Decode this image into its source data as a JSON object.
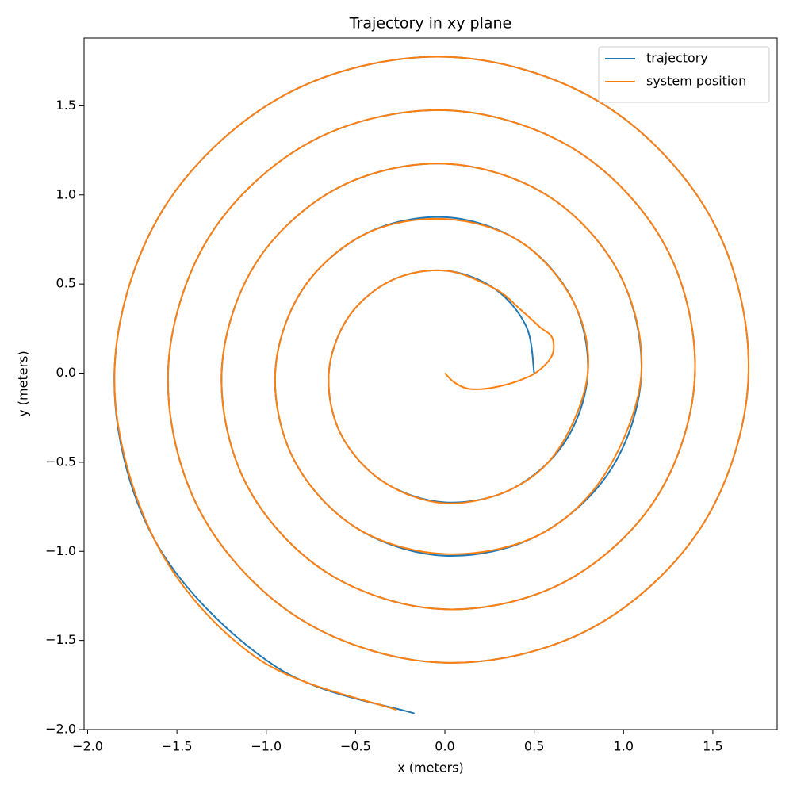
{
  "chart_data": {
    "type": "line",
    "title": "Trajectory in xy plane",
    "xlabel": "x (meters)",
    "ylabel": "y (meters)",
    "xlim": [
      -2.02,
      1.86
    ],
    "ylim": [
      -2.0,
      1.88
    ],
    "xticks": [
      {
        "value": -2.0,
        "label": "−2.0"
      },
      {
        "value": -1.5,
        "label": "−1.5"
      },
      {
        "value": -1.0,
        "label": "−1.0"
      },
      {
        "value": -0.5,
        "label": "−0.5"
      },
      {
        "value": 0.0,
        "label": "0.0"
      },
      {
        "value": 0.5,
        "label": "0.5"
      },
      {
        "value": 1.0,
        "label": "1.0"
      },
      {
        "value": 1.5,
        "label": "1.5"
      }
    ],
    "yticks": [
      {
        "value": -2.0,
        "label": "−2.0"
      },
      {
        "value": -1.5,
        "label": "−1.5"
      },
      {
        "value": -1.0,
        "label": "−1.0"
      },
      {
        "value": -0.5,
        "label": "−0.5"
      },
      {
        "value": 0.0,
        "label": "0.0"
      },
      {
        "value": 0.5,
        "label": "0.5"
      },
      {
        "value": 1.0,
        "label": "1.0"
      },
      {
        "value": 1.5,
        "label": "1.5"
      }
    ],
    "legend": "upper right",
    "grid": false,
    "series": [
      {
        "name": "trajectory",
        "color": "#1f77b4",
        "x": [
          0.5,
          0.455,
          0.275,
          0,
          -0.3,
          -0.541,
          -0.65,
          -0.585,
          -0.35,
          0,
          0.375,
          0.671,
          0.8,
          0.714,
          0.425,
          0,
          -0.45,
          -0.801,
          -0.95,
          -0.844,
          -0.5,
          0,
          0.525,
          0.931,
          1.1,
          0.974,
          0.575,
          0,
          -0.6,
          -1.061,
          -1.25,
          -1.104,
          -0.65,
          0,
          0.675,
          1.191,
          1.4,
          1.234,
          0.725,
          0,
          -0.75,
          -1.321,
          -1.55,
          -1.364,
          -0.8,
          0,
          0.825,
          1.451,
          1.7,
          1.494,
          0.875,
          0,
          -0.9,
          -1.581,
          -1.85,
          -1.624,
          -0.95,
          -0.17
        ],
        "values": [
          0,
          0.263,
          0.476,
          0.575,
          0.52,
          0.313,
          0,
          -0.338,
          -0.606,
          -0.725,
          -0.65,
          -0.388,
          0,
          0.413,
          0.736,
          0.875,
          0.779,
          0.463,
          0,
          -0.488,
          -0.866,
          -1.025,
          -0.909,
          -0.538,
          0,
          0.563,
          0.996,
          1.175,
          1.039,
          0.613,
          0,
          -0.638,
          -1.126,
          -1.325,
          -1.169,
          -0.688,
          0,
          0.713,
          1.256,
          1.475,
          1.299,
          0.763,
          0,
          -0.788,
          -1.386,
          -1.625,
          -1.429,
          -0.838,
          0,
          0.863,
          1.516,
          1.775,
          1.559,
          0.913,
          0,
          -0.938,
          -1.645,
          -1.91
        ]
      },
      {
        "name": "system position",
        "color": "#ff7f0e",
        "x": [
          0,
          0.05,
          0.12,
          0.2,
          0.3,
          0.42,
          0.52,
          0.6,
          0.6,
          0.53,
          0.42,
          0.275,
          0,
          -0.3,
          -0.541,
          -0.65,
          -0.585,
          -0.35,
          0,
          0.375,
          0.64,
          0.8,
          0.72,
          0.425,
          0,
          -0.45,
          -0.801,
          -0.95,
          -0.844,
          -0.5,
          0,
          0.525,
          0.9,
          1.1,
          0.974,
          0.575,
          0,
          -0.6,
          -1.061,
          -1.25,
          -1.104,
          -0.65,
          0,
          0.675,
          1.191,
          1.4,
          1.234,
          0.725,
          0,
          -0.75,
          -1.321,
          -1.55,
          -1.364,
          -0.8,
          0,
          0.825,
          1.451,
          1.7,
          1.494,
          0.875,
          0,
          -0.9,
          -1.581,
          -1.85,
          -1.624,
          -1.05,
          -0.27
        ],
        "values": [
          0,
          -0.05,
          -0.085,
          -0.09,
          -0.075,
          -0.04,
          0.01,
          0.1,
          0.2,
          0.26,
          0.36,
          0.476,
          0.575,
          0.52,
          0.313,
          0,
          -0.338,
          -0.606,
          -0.73,
          -0.65,
          -0.42,
          0,
          0.4,
          0.736,
          0.865,
          0.779,
          0.463,
          0,
          -0.488,
          -0.866,
          -1.015,
          -0.909,
          -0.56,
          0,
          0.563,
          0.996,
          1.175,
          1.039,
          0.613,
          0,
          -0.638,
          -1.126,
          -1.325,
          -1.169,
          -0.688,
          0,
          0.713,
          1.256,
          1.475,
          1.299,
          0.763,
          0,
          -0.788,
          -1.386,
          -1.625,
          -1.429,
          -0.838,
          0,
          0.863,
          1.516,
          1.775,
          1.559,
          0.913,
          0,
          -0.938,
          -1.6,
          -1.89
        ]
      }
    ]
  }
}
